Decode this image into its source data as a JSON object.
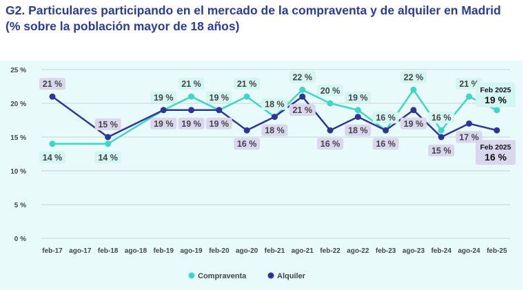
{
  "title_line1": "G2. Particulares participando en el mercado de la compraventa y de alquiler en Madrid",
  "title_line2": "(% sobre la población mayor de 18 años)",
  "chart_data": {
    "type": "line",
    "categories": [
      "feb-17",
      "ago-17",
      "feb-18",
      "ago-18",
      "feb-19",
      "ago-19",
      "feb-20",
      "ago-20",
      "feb-21",
      "ago-21",
      "feb-22",
      "ago-22",
      "feb-23",
      "ago-23",
      "feb-24",
      "ago-24",
      "feb-25"
    ],
    "yticks": [
      "0 %",
      "5 %",
      "10 %",
      "15 %",
      "20 %",
      "25 %"
    ],
    "ylim": [
      0,
      25
    ],
    "grid": true,
    "legend_placement": "bottom",
    "series": [
      {
        "name": "Compraventa",
        "color": "#3dd6c8",
        "label_bg": "#d4f5f1",
        "values": [
          14,
          null,
          14,
          null,
          19,
          21,
          19,
          21,
          18,
          22,
          20,
          19,
          16,
          22,
          16,
          21,
          19
        ]
      },
      {
        "name": "Alquiler",
        "color": "#2d3596",
        "label_bg": "#d9d6ee",
        "values": [
          21,
          null,
          15,
          null,
          19,
          19,
          19,
          16,
          18,
          21,
          16,
          18,
          16,
          19,
          15,
          17,
          16
        ]
      }
    ],
    "annotations": [
      {
        "series": "Compraventa",
        "period": "Feb 2025",
        "value": "19 %"
      },
      {
        "series": "Alquiler",
        "period": "Feb 2025",
        "value": "16 %"
      }
    ]
  }
}
